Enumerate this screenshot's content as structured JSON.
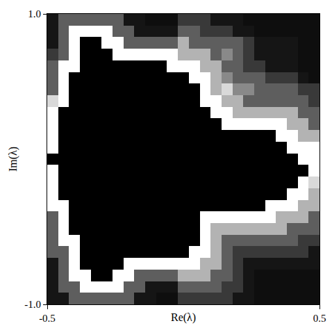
{
  "chart_data": {
    "type": "heatmap",
    "x_label": "Re(λ)",
    "y_label": "Im(λ)",
    "x": [
      -0.48,
      -0.44,
      -0.4,
      -0.36,
      -0.32,
      -0.28,
      -0.24,
      -0.2,
      -0.16,
      -0.12,
      -0.08,
      -0.04,
      0.0,
      0.04,
      0.08,
      0.12,
      0.16,
      0.2,
      0.24,
      0.28,
      0.32,
      0.36,
      0.4,
      0.44,
      0.48
    ],
    "y": [
      -0.96,
      -0.88,
      -0.8,
      -0.72,
      -0.64,
      -0.56,
      -0.48,
      -0.4,
      -0.32,
      -0.24,
      -0.16,
      -0.08,
      0.0,
      0.08,
      0.16,
      0.24,
      0.32,
      0.4,
      0.48,
      0.56,
      0.64,
      0.72,
      0.8,
      0.88,
      0.96
    ],
    "cells": [
      [
        3,
        3,
        5,
        5,
        5,
        5,
        5,
        5,
        3,
        3,
        2,
        2,
        4,
        4,
        4,
        4,
        4,
        3,
        3,
        2,
        2,
        2,
        2,
        2,
        2
      ],
      [
        3,
        5,
        5,
        9,
        9,
        9,
        9,
        5,
        5,
        3,
        3,
        3,
        5,
        5,
        5,
        5,
        4,
        4,
        3,
        2,
        2,
        2,
        2,
        2,
        2
      ],
      [
        3,
        5,
        9,
        9,
        0,
        0,
        9,
        9,
        5,
        5,
        5,
        5,
        7,
        7,
        7,
        5,
        5,
        4,
        3,
        2,
        2,
        2,
        2,
        2,
        2
      ],
      [
        3,
        5,
        9,
        0,
        0,
        0,
        0,
        9,
        9,
        9,
        9,
        9,
        9,
        9,
        7,
        7,
        5,
        4,
        3,
        3,
        3,
        3,
        3,
        3,
        3
      ],
      [
        5,
        5,
        9,
        0,
        0,
        0,
        0,
        0,
        0,
        0,
        0,
        0,
        0,
        9,
        9,
        7,
        5,
        4,
        4,
        4,
        4,
        4,
        4,
        4,
        3
      ],
      [
        5,
        9,
        9,
        0,
        0,
        0,
        0,
        0,
        0,
        0,
        0,
        0,
        0,
        0,
        9,
        7,
        5,
        5,
        5,
        5,
        5,
        5,
        5,
        4,
        4
      ],
      [
        5,
        9,
        0,
        0,
        0,
        0,
        0,
        0,
        0,
        0,
        0,
        0,
        0,
        0,
        9,
        7,
        7,
        7,
        7,
        7,
        7,
        7,
        5,
        5,
        5
      ],
      [
        5,
        9,
        0,
        0,
        0,
        0,
        0,
        0,
        0,
        0,
        0,
        0,
        0,
        0,
        9,
        9,
        9,
        9,
        9,
        9,
        9,
        7,
        7,
        7,
        5
      ],
      [
        9,
        9,
        0,
        0,
        0,
        0,
        0,
        0,
        0,
        0,
        0,
        0,
        0,
        0,
        0,
        0,
        0,
        0,
        0,
        0,
        9,
        9,
        9,
        7,
        7
      ],
      [
        9,
        0,
        0,
        0,
        0,
        0,
        0,
        0,
        0,
        0,
        0,
        0,
        0,
        0,
        0,
        0,
        0,
        0,
        0,
        0,
        0,
        0,
        9,
        9,
        7
      ],
      [
        9,
        0,
        0,
        0,
        0,
        0,
        0,
        0,
        0,
        0,
        0,
        0,
        0,
        0,
        0,
        0,
        0,
        0,
        0,
        0,
        0,
        0,
        0,
        9,
        8
      ],
      [
        9,
        0,
        0,
        0,
        0,
        0,
        0,
        0,
        0,
        0,
        0,
        0,
        0,
        0,
        0,
        0,
        0,
        0,
        0,
        0,
        0,
        0,
        0,
        0,
        9
      ],
      [
        0,
        0,
        0,
        0,
        0,
        0,
        0,
        0,
        0,
        0,
        0,
        0,
        0,
        0,
        0,
        0,
        0,
        0,
        0,
        0,
        0,
        0,
        0,
        9,
        9
      ],
      [
        9,
        0,
        0,
        0,
        0,
        0,
        0,
        0,
        0,
        0,
        0,
        0,
        0,
        0,
        0,
        0,
        0,
        0,
        0,
        0,
        0,
        0,
        9,
        9,
        9
      ],
      [
        9,
        0,
        0,
        0,
        0,
        0,
        0,
        0,
        0,
        0,
        0,
        0,
        0,
        0,
        0,
        0,
        0,
        0,
        0,
        0,
        0,
        9,
        9,
        7,
        7
      ],
      [
        9,
        0,
        0,
        0,
        0,
        0,
        0,
        0,
        0,
        0,
        0,
        0,
        0,
        0,
        0,
        0,
        9,
        9,
        9,
        9,
        9,
        9,
        7,
        7,
        5
      ],
      [
        9,
        0,
        0,
        0,
        0,
        0,
        0,
        0,
        0,
        0,
        0,
        0,
        0,
        0,
        0,
        9,
        9,
        7,
        7,
        7,
        7,
        7,
        7,
        5,
        5
      ],
      [
        8,
        9,
        0,
        0,
        0,
        0,
        0,
        0,
        0,
        0,
        0,
        0,
        0,
        0,
        9,
        9,
        7,
        7,
        5,
        5,
        5,
        5,
        5,
        5,
        4
      ],
      [
        5,
        9,
        0,
        0,
        0,
        0,
        0,
        0,
        0,
        0,
        0,
        0,
        0,
        0,
        9,
        7,
        8,
        6,
        6,
        5,
        5,
        5,
        5,
        4,
        4
      ],
      [
        5,
        9,
        0,
        0,
        0,
        0,
        0,
        0,
        0,
        0,
        0,
        0,
        0,
        9,
        9,
        7,
        6,
        5,
        5,
        5,
        4,
        4,
        4,
        3,
        2
      ],
      [
        5,
        9,
        9,
        0,
        0,
        0,
        0,
        0,
        0,
        0,
        0,
        9,
        9,
        9,
        7,
        7,
        5,
        5,
        4,
        4,
        3,
        3,
        3,
        2,
        2
      ],
      [
        4,
        5,
        9,
        0,
        0,
        0,
        9,
        9,
        9,
        9,
        9,
        9,
        7,
        7,
        7,
        5,
        6,
        5,
        4,
        3,
        3,
        3,
        3,
        2,
        2
      ],
      [
        3,
        5,
        9,
        0,
        0,
        9,
        9,
        5,
        5,
        5,
        5,
        5,
        7,
        5,
        5,
        5,
        5,
        5,
        4,
        3,
        3,
        3,
        3,
        2,
        2
      ],
      [
        3,
        5,
        9,
        9,
        9,
        9,
        5,
        5,
        3,
        3,
        3,
        3,
        5,
        5,
        4,
        4,
        4,
        3,
        3,
        2,
        2,
        2,
        2,
        2,
        2
      ],
      [
        3,
        5,
        5,
        5,
        5,
        5,
        5,
        3,
        3,
        2,
        2,
        2,
        4,
        4,
        4,
        3,
        3,
        3,
        2,
        2,
        2,
        2,
        2,
        2,
        2
      ]
    ],
    "cell_range": [
      0,
      9
    ],
    "xlim": [
      -0.5,
      0.5
    ],
    "ylim": [
      -1,
      1
    ],
    "xticks": [
      -0.5,
      0.5
    ],
    "yticks": [
      {
        "value": -1,
        "label": "-1.0"
      },
      {
        "value": 1,
        "label": "1.0"
      }
    ],
    "grid": false
  }
}
